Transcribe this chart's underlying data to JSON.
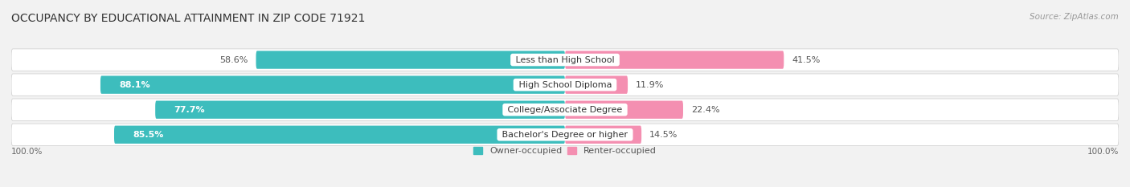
{
  "title": "OCCUPANCY BY EDUCATIONAL ATTAINMENT IN ZIP CODE 71921",
  "source": "Source: ZipAtlas.com",
  "categories": [
    "Less than High School",
    "High School Diploma",
    "College/Associate Degree",
    "Bachelor's Degree or higher"
  ],
  "owner_values": [
    58.6,
    88.1,
    77.7,
    85.5
  ],
  "renter_values": [
    41.5,
    11.9,
    22.4,
    14.5
  ],
  "owner_color": "#3DBDBD",
  "renter_color": "#F48FB1",
  "background_color": "#F2F2F2",
  "row_bg_color": "#E8E8E8",
  "title_fontsize": 10,
  "bar_label_fontsize": 8,
  "cat_label_fontsize": 8,
  "legend_fontsize": 8,
  "bar_height": 0.72,
  "legend_owner": "Owner-occupied",
  "legend_renter": "Renter-occupied",
  "xlim": 105,
  "axis_label_fontsize": 7.5
}
